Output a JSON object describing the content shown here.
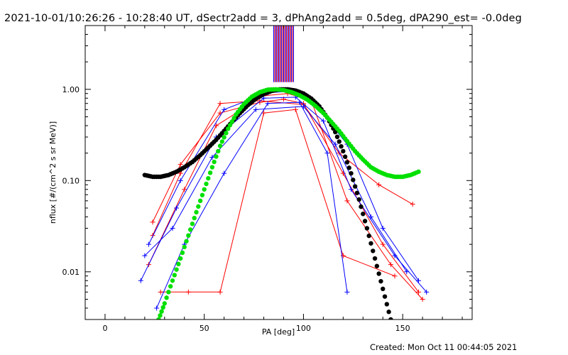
{
  "header": {
    "title": "2021-10-01/10:26:26 - 10:28:40 UT, dSectr2add = 3, dPhAng2add = 0.5deg, dPA290_est= -0.0deg"
  },
  "footer": {
    "created": "Created: Mon Oct 11 00:44:05 2021"
  },
  "colors": {
    "series_red": "#ff0000",
    "series_blue": "#0000ff",
    "model_black": "#000000",
    "model_green": "#00e000"
  },
  "chart_data": {
    "type": "scatter",
    "xlabel": "PA [deg]",
    "ylabel": "nflux [#/(cm^2 s sr MeV)]",
    "xlim": [
      -10,
      185
    ],
    "ylim": [
      0.003,
      5
    ],
    "y_scale": "log",
    "x_ticks": [
      0,
      50,
      100,
      150
    ],
    "x_tick_labels": [
      "0",
      "50",
      "100",
      "150"
    ],
    "y_ticks": [
      0.01,
      0.1,
      1.0
    ],
    "y_tick_labels": [
      "0.01",
      "0.10",
      "1.00"
    ],
    "grid": false,
    "series": [
      {
        "color": "red",
        "values": [
          [
            [
              24,
              0.035
            ],
            [
              38,
              0.15
            ],
            [
              58,
              0.55
            ],
            [
              78,
              0.72
            ],
            [
              90,
              0.78
            ],
            [
              100,
              0.7
            ],
            [
              120,
              0.12
            ],
            [
              140,
              0.02
            ],
            [
              158,
              0.006
            ]
          ],
          [
            [
              22,
              0.012
            ],
            [
              40,
              0.08
            ],
            [
              56,
              0.4
            ],
            [
              80,
              0.85
            ],
            [
              92,
              0.9
            ],
            [
              104,
              0.75
            ],
            [
              122,
              0.06
            ],
            [
              144,
              0.012
            ],
            [
              160,
              0.005
            ]
          ],
          [
            [
              28,
              0.006
            ],
            [
              42,
              0.006
            ],
            [
              58,
              0.006
            ],
            [
              80,
              0.55
            ],
            [
              96,
              0.6
            ],
            [
              120,
              0.015
            ],
            [
              146,
              0.009
            ]
          ],
          [
            [
              24,
              0.025
            ],
            [
              38,
              0.12
            ],
            [
              58,
              0.7
            ],
            [
              78,
              0.75
            ],
            [
              100,
              0.68
            ],
            [
              118,
              0.2
            ],
            [
              138,
              0.09
            ],
            [
              155,
              0.055
            ]
          ]
        ]
      },
      {
        "color": "blue",
        "values": [
          [
            [
              18,
              0.008
            ],
            [
              36,
              0.05
            ],
            [
              56,
              0.3
            ],
            [
              80,
              0.8
            ],
            [
              96,
              0.82
            ],
            [
              110,
              0.45
            ],
            [
              124,
              0.08
            ],
            [
              146,
              0.015
            ],
            [
              162,
              0.006
            ]
          ],
          [
            [
              22,
              0.02
            ],
            [
              38,
              0.1
            ],
            [
              60,
              0.6
            ],
            [
              82,
              0.92
            ],
            [
              94,
              0.95
            ],
            [
              108,
              0.6
            ],
            [
              122,
              0.25
            ],
            [
              140,
              0.03
            ],
            [
              158,
              0.008
            ]
          ],
          [
            [
              26,
              0.004
            ],
            [
              40,
              0.02
            ],
            [
              60,
              0.12
            ],
            [
              82,
              0.7
            ],
            [
              98,
              0.72
            ],
            [
              112,
              0.2
            ],
            [
              122,
              0.006
            ]
          ],
          [
            [
              20,
              0.015
            ],
            [
              34,
              0.03
            ],
            [
              54,
              0.18
            ],
            [
              76,
              0.6
            ],
            [
              100,
              0.65
            ],
            [
              116,
              0.25
            ],
            [
              134,
              0.04
            ],
            [
              152,
              0.01
            ]
          ]
        ]
      }
    ],
    "spike": {
      "x_range": [
        85,
        95
      ],
      "y_range": [
        1.2,
        5
      ]
    },
    "model_curves": [
      {
        "color": "black",
        "x": [
          20,
          24,
          28,
          32,
          36,
          40,
          44,
          48,
          52,
          56,
          60,
          64,
          68,
          72,
          76,
          80,
          84,
          88,
          92,
          96,
          100,
          104,
          108,
          112,
          116,
          120,
          124,
          128,
          132,
          136,
          140,
          144
        ],
        "y": [
          0.115,
          0.11,
          0.11,
          0.115,
          0.125,
          0.14,
          0.16,
          0.19,
          0.23,
          0.28,
          0.35,
          0.44,
          0.55,
          0.67,
          0.79,
          0.89,
          0.96,
          1.0,
          1.0,
          0.97,
          0.9,
          0.79,
          0.65,
          0.49,
          0.34,
          0.21,
          0.12,
          0.062,
          0.03,
          0.014,
          0.0065,
          0.003
        ]
      },
      {
        "color": "green",
        "x": [
          27,
          30,
          34,
          38,
          42,
          46,
          50,
          54,
          58,
          62,
          66,
          70,
          74,
          78,
          82,
          86,
          90,
          94,
          98,
          102,
          106,
          110,
          114,
          118,
          122,
          126,
          130,
          134,
          138,
          142,
          146,
          150,
          154,
          158
        ],
        "y": [
          0.003,
          0.0045,
          0.008,
          0.014,
          0.025,
          0.045,
          0.08,
          0.14,
          0.24,
          0.37,
          0.53,
          0.69,
          0.83,
          0.93,
          0.99,
          1.0,
          0.98,
          0.93,
          0.86,
          0.77,
          0.66,
          0.55,
          0.44,
          0.35,
          0.27,
          0.21,
          0.17,
          0.14,
          0.125,
          0.115,
          0.11,
          0.11,
          0.115,
          0.125
        ]
      }
    ]
  }
}
